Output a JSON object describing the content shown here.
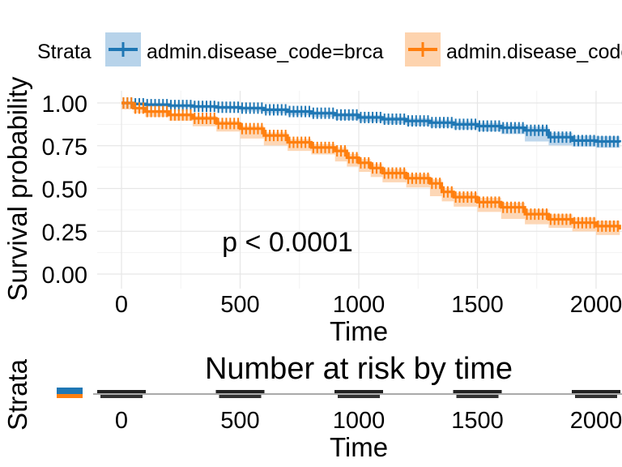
{
  "legend": {
    "title": "Strata",
    "items": [
      {
        "label": "admin.disease_code=brca",
        "color": "#1f77b4",
        "fill": "#b7d3ea"
      },
      {
        "label": "admin.disease_code=ov",
        "color": "#ff7f0e",
        "fill": "#fdd3ae"
      }
    ]
  },
  "chart_data": [
    {
      "type": "line",
      "subtype": "kaplan-meier",
      "title": "",
      "xlabel": "Time",
      "ylabel": "Survival probability",
      "xlim": [
        -60,
        2100
      ],
      "ylim": [
        -0.06,
        1.09
      ],
      "xticks": [
        0,
        500,
        1000,
        1500,
        2000
      ],
      "xtick_labels": [
        "0",
        "500",
        "1000",
        "1500",
        "2000"
      ],
      "yticks": [
        0,
        0.25,
        0.5,
        0.75,
        1.0
      ],
      "ytick_labels": [
        "0.00",
        "0.25",
        "0.50",
        "0.75",
        "1.00"
      ],
      "grid": true,
      "legend_position": "top",
      "annotation": "p < 0.0001",
      "series": [
        {
          "name": "admin.disease_code=brca",
          "color": "#1f77b4",
          "fill": "#b7d3ea",
          "x": [
            0,
            50,
            100,
            200,
            300,
            400,
            500,
            600,
            700,
            800,
            900,
            1000,
            1100,
            1200,
            1300,
            1400,
            1500,
            1600,
            1700,
            1800,
            1900,
            2000,
            2100
          ],
          "y": [
            1.0,
            0.995,
            0.99,
            0.985,
            0.98,
            0.975,
            0.97,
            0.96,
            0.95,
            0.94,
            0.93,
            0.915,
            0.905,
            0.895,
            0.885,
            0.875,
            0.865,
            0.855,
            0.84,
            0.8,
            0.78,
            0.775,
            0.77
          ],
          "ci_halfwidth": [
            0,
            0.003,
            0.005,
            0.006,
            0.007,
            0.008,
            0.009,
            0.01,
            0.011,
            0.012,
            0.013,
            0.014,
            0.015,
            0.016,
            0.017,
            0.018,
            0.019,
            0.02,
            0.022,
            0.025,
            0.028,
            0.03,
            0.032
          ]
        },
        {
          "name": "admin.disease_code=ov",
          "color": "#ff7f0e",
          "fill": "#fdd3ae",
          "x": [
            0,
            50,
            100,
            200,
            300,
            400,
            500,
            600,
            700,
            800,
            900,
            950,
            1000,
            1050,
            1100,
            1200,
            1300,
            1350,
            1400,
            1500,
            1600,
            1700,
            1800,
            1900,
            2000,
            2100
          ],
          "y": [
            1.0,
            0.97,
            0.95,
            0.93,
            0.91,
            0.88,
            0.85,
            0.81,
            0.77,
            0.74,
            0.72,
            0.68,
            0.65,
            0.62,
            0.59,
            0.56,
            0.53,
            0.48,
            0.45,
            0.42,
            0.39,
            0.35,
            0.32,
            0.3,
            0.28,
            0.26
          ],
          "ci_halfwidth": [
            0,
            0.008,
            0.01,
            0.012,
            0.014,
            0.016,
            0.017,
            0.018,
            0.019,
            0.02,
            0.021,
            0.022,
            0.022,
            0.023,
            0.023,
            0.024,
            0.024,
            0.025,
            0.025,
            0.026,
            0.027,
            0.028,
            0.029,
            0.03,
            0.031,
            0.032
          ]
        }
      ]
    },
    {
      "type": "table",
      "title": "Number at risk by time",
      "xlabel": "Time",
      "ylabel": "Strata",
      "xticks": [
        0,
        500,
        1000,
        1500,
        2000
      ],
      "xtick_labels": [
        "0",
        "500",
        "1000",
        "1500",
        "2000"
      ],
      "rows": [
        {
          "name": "admin.disease_code=brca",
          "color": "#1f77b4"
        },
        {
          "name": "admin.disease_code=ov",
          "color": "#ff7f0e"
        }
      ]
    }
  ]
}
